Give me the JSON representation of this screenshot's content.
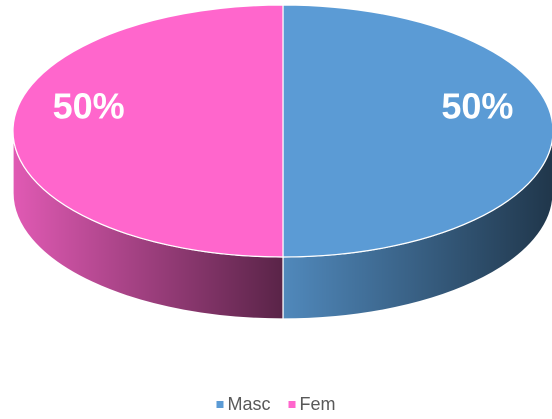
{
  "chart_data": {
    "type": "pie3d",
    "categories": [
      "Masc",
      "Fem"
    ],
    "values": [
      50,
      50
    ],
    "value_labels": [
      "50%",
      "50%"
    ],
    "colors": [
      "#5b9bd5",
      "#ff66cc"
    ],
    "legend": "bottom"
  }
}
